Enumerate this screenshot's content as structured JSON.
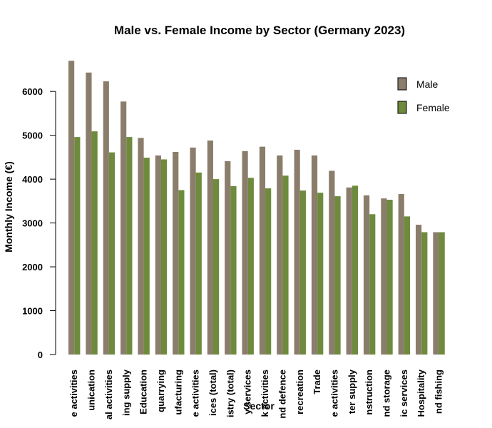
{
  "chart_data": {
    "type": "bar",
    "title": "Male vs. Female Income by Sector (Germany 2023)",
    "xlabel": "Sector",
    "ylabel": "Monthly Income (€)",
    "ylim": [
      0,
      6800
    ],
    "yticks": [
      0,
      1000,
      2000,
      3000,
      4000,
      5000,
      6000
    ],
    "grid": false,
    "legend_position": "top-right",
    "categories": [
      "e activities",
      "unication",
      "al activities",
      "ing supply",
      "Education",
      "quarrying",
      "ufacturing",
      "e activities",
      "ices (total)",
      "istry (total)",
      "y services",
      "k activities",
      "nd defence",
      "recreation",
      "Trade",
      "e activities",
      "ter supply",
      "nstruction",
      "nd storage",
      "ic services",
      "Hospitality",
      "nd fishing"
    ],
    "series": [
      {
        "name": "Male",
        "color": "#8b7d6b",
        "values": [
          6700,
          6430,
          6230,
          5770,
          4940,
          4540,
          4620,
          4720,
          4880,
          4410,
          4640,
          4740,
          4540,
          4670,
          4540,
          4190,
          3810,
          3630,
          3560,
          3660,
          2960,
          2790
        ]
      },
      {
        "name": "Female",
        "color": "#6e8b3d",
        "values": [
          4960,
          5090,
          4610,
          4960,
          4490,
          4450,
          3750,
          4150,
          4000,
          3840,
          4030,
          3790,
          4080,
          3740,
          3690,
          3610,
          3850,
          3200,
          3530,
          3150,
          2790,
          2790
        ]
      }
    ]
  }
}
